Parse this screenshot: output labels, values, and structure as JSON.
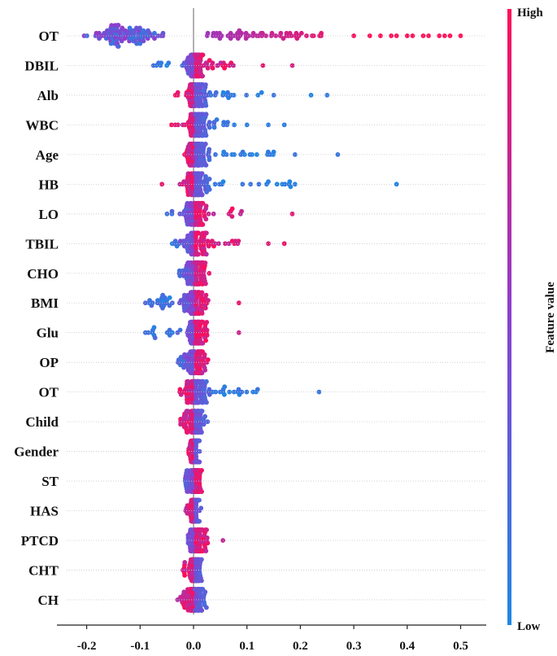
{
  "chart_data": {
    "type": "scatter",
    "subtype": "beeswarm",
    "title": "",
    "xlabel": "",
    "ylabel": "",
    "xlim": [
      -0.26,
      0.55
    ],
    "x_ticks": [
      -0.2,
      -0.1,
      0.0,
      0.1,
      0.2,
      0.3,
      0.4,
      0.5
    ],
    "x_tick_labels": [
      "-0.2",
      "-0.1",
      "0.0",
      "0.1",
      "0.2",
      "0.3",
      "0.4",
      "0.5"
    ],
    "features": [
      "OT",
      "DBIL",
      "Alb",
      "WBC",
      "Age",
      "HB",
      "LO",
      "TBIL",
      "CHO",
      "BMI",
      "Glu",
      "OP",
      "OT",
      "Child",
      "Gender",
      "ST",
      "HAS",
      "PTCD",
      "CHT",
      "CH"
    ],
    "colorbar": {
      "title": "Feature value",
      "high_label": "High",
      "low_label": "Low",
      "high_color": "#ff0d57",
      "mid_color": "#8b3fd0",
      "low_color": "#1e88e5"
    },
    "feature_spreads": [
      {
        "feature": "OT",
        "min": -0.22,
        "max": 0.505,
        "low_side": "negative",
        "extreme_points": [
          0.3,
          0.33,
          0.35,
          0.37,
          0.38,
          0.4,
          0.41,
          0.43,
          0.44,
          0.46,
          0.47,
          0.48,
          0.5
        ]
      },
      {
        "feature": "DBIL",
        "min": -0.08,
        "max": 0.185,
        "low_side": "negative",
        "extreme_points": [
          0.13,
          0.185
        ]
      },
      {
        "feature": "Alb",
        "min": -0.05,
        "max": 0.25,
        "low_side": "positive",
        "extreme_points": [
          0.15,
          0.22,
          0.25
        ]
      },
      {
        "feature": "WBC",
        "min": -0.05,
        "max": 0.17,
        "low_side": "positive",
        "extreme_points": [
          0.1,
          0.14,
          0.17
        ]
      },
      {
        "feature": "Age",
        "min": -0.03,
        "max": 0.27,
        "low_side": "positive",
        "extreme_points": [
          0.15,
          0.19,
          0.27
        ]
      },
      {
        "feature": "HB",
        "min": -0.06,
        "max": 0.38,
        "low_side": "positive",
        "extreme_points": [
          0.14,
          0.18,
          0.38
        ]
      },
      {
        "feature": "LO",
        "min": -0.05,
        "max": 0.185,
        "low_side": "negative",
        "extreme_points": [
          0.09,
          0.185
        ]
      },
      {
        "feature": "TBIL",
        "min": -0.04,
        "max": 0.17,
        "low_side": "negative",
        "extreme_points": [
          0.14,
          0.17
        ]
      },
      {
        "feature": "CHO",
        "min": -0.03,
        "max": 0.05,
        "low_side": "negative",
        "extreme_points": []
      },
      {
        "feature": "BMI",
        "min": -0.09,
        "max": 0.085,
        "low_side": "negative",
        "extreme_points": [
          -0.09,
          0.085
        ]
      },
      {
        "feature": "Glu",
        "min": -0.09,
        "max": 0.085,
        "low_side": "negative",
        "extreme_points": [
          -0.09,
          0.085
        ]
      },
      {
        "feature": "OP",
        "min": -0.03,
        "max": 0.05,
        "low_side": "negative",
        "extreme_points": []
      },
      {
        "feature": "OT",
        "min": -0.03,
        "max": 0.235,
        "low_side": "positive",
        "extreme_points": [
          0.12,
          0.235
        ]
      },
      {
        "feature": "Child",
        "min": -0.025,
        "max": 0.03,
        "low_side": "positive",
        "extreme_points": []
      },
      {
        "feature": "Gender",
        "min": -0.01,
        "max": 0.02,
        "low_side": "positive",
        "extreme_points": []
      },
      {
        "feature": "ST",
        "min": -0.02,
        "max": 0.015,
        "low_side": "negative",
        "extreme_points": []
      },
      {
        "feature": "HAS",
        "min": -0.015,
        "max": 0.015,
        "low_side": "positive",
        "extreme_points": []
      },
      {
        "feature": "PTCD",
        "min": -0.01,
        "max": 0.055,
        "low_side": "negative",
        "extreme_points": [
          0.055
        ]
      },
      {
        "feature": "CHT",
        "min": -0.02,
        "max": 0.015,
        "low_side": "positive",
        "extreme_points": []
      },
      {
        "feature": "CH",
        "min": -0.03,
        "max": 0.03,
        "low_side": "positive",
        "extreme_points": []
      }
    ]
  }
}
